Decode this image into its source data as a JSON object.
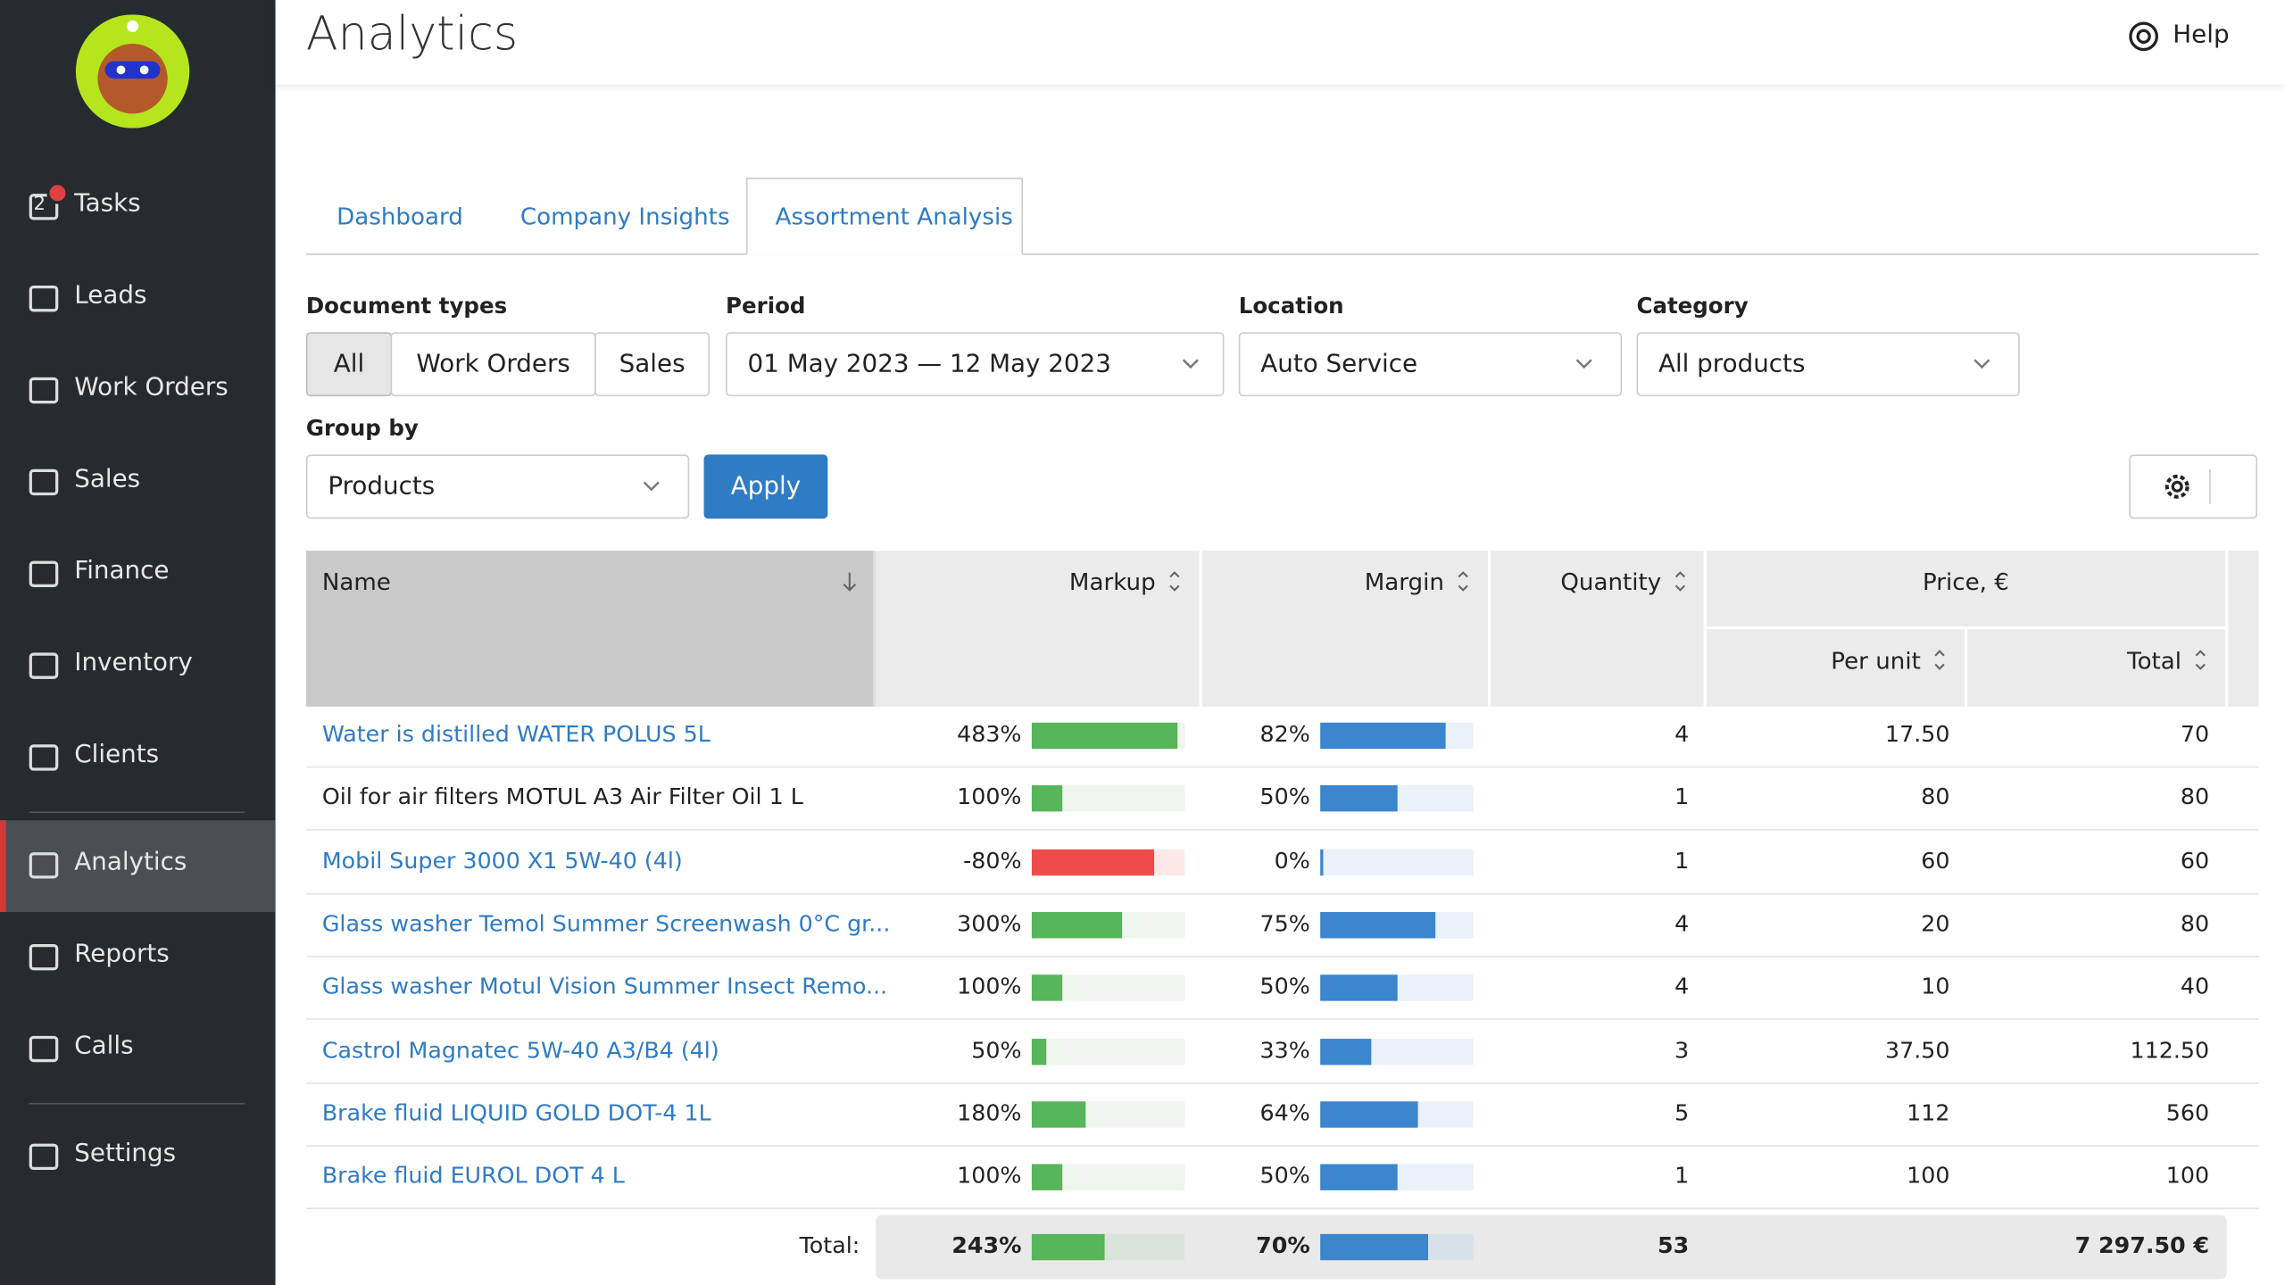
{
  "sidebar": {
    "items": [
      {
        "label": "Tasks",
        "badge": "2"
      },
      {
        "label": "Leads"
      },
      {
        "label": "Work Orders"
      },
      {
        "label": "Sales"
      },
      {
        "label": "Finance"
      },
      {
        "label": "Inventory"
      },
      {
        "label": "Clients"
      },
      {
        "label": "Analytics"
      },
      {
        "label": "Reports"
      },
      {
        "label": "Calls"
      },
      {
        "label": "Settings"
      }
    ]
  },
  "header": {
    "title": "Analytics",
    "help": "Help"
  },
  "tabs": [
    "Dashboard",
    "Company Insights",
    "Assortment Analysis"
  ],
  "filters": {
    "document_types": {
      "label": "Document types",
      "options": [
        "All",
        "Work Orders",
        "Sales"
      ]
    },
    "period": {
      "label": "Period",
      "value": "01 May 2023 — 12 May 2023"
    },
    "location": {
      "label": "Location",
      "value": "Auto Service"
    },
    "category": {
      "label": "Category",
      "value": "All products"
    },
    "group_by": {
      "label": "Group by",
      "value": "Products"
    },
    "apply": "Apply"
  },
  "table": {
    "columns": {
      "name": "Name",
      "markup": "Markup",
      "margin": "Margin",
      "quantity": "Quantity",
      "price": "Price, €",
      "per_unit": "Per unit",
      "total": "Total"
    },
    "rows": [
      {
        "name": "Water is distilled WATER POLUS 5L",
        "name_color": "#2f7bc4",
        "markup": {
          "value": 483,
          "label": "483%"
        },
        "margin": {
          "value": 82,
          "label": "82%"
        },
        "quantity": "4",
        "per_unit": "17.50",
        "total": "70"
      },
      {
        "name": "Oil for air filters MOTUL A3 Air Filter Oil 1 L",
        "name_color": "#222222",
        "markup": {
          "value": 100,
          "label": "100%"
        },
        "margin": {
          "value": 50,
          "label": "50%"
        },
        "quantity": "1",
        "per_unit": "80",
        "total": "80"
      },
      {
        "name": "Mobil Super 3000 X1 5W-40 (4l)",
        "name_color": "#2f7bc4",
        "markup": {
          "value": -80,
          "label": "-80%"
        },
        "margin": {
          "value": 0,
          "label": "0%"
        },
        "quantity": "1",
        "per_unit": "60",
        "total": "60"
      },
      {
        "name": "Glass washer Temol Summer Screenwash 0°C gr...",
        "name_color": "#2f7bc4",
        "markup": {
          "value": 300,
          "label": "300%"
        },
        "margin": {
          "value": 75,
          "label": "75%"
        },
        "quantity": "4",
        "per_unit": "20",
        "total": "80"
      },
      {
        "name": "Glass washer Motul Vision Summer Insect Remo...",
        "name_color": "#2f7bc4",
        "markup": {
          "value": 100,
          "label": "100%"
        },
        "margin": {
          "value": 50,
          "label": "50%"
        },
        "quantity": "4",
        "per_unit": "10",
        "total": "40"
      },
      {
        "name": "Castrol Magnatec 5W-40 A3/B4 (4l)",
        "name_color": "#2f7bc4",
        "markup": {
          "value": 50,
          "label": "50%"
        },
        "margin": {
          "value": 33,
          "label": "33%"
        },
        "quantity": "3",
        "per_unit": "37.50",
        "total": "112.50"
      },
      {
        "name": "Brake fluid LIQUID GOLD DOT-4 1L",
        "name_color": "#2f7bc4",
        "markup": {
          "value": 180,
          "label": "180%"
        },
        "margin": {
          "value": 64,
          "label": "64%"
        },
        "quantity": "5",
        "per_unit": "112",
        "total": "560"
      },
      {
        "name": "Brake fluid EUROL DOT 4 L",
        "name_color": "#2f7bc4",
        "markup": {
          "value": 100,
          "label": "100%"
        },
        "margin": {
          "value": 50,
          "label": "50%"
        },
        "quantity": "1",
        "per_unit": "100",
        "total": "100"
      }
    ],
    "totals": {
      "label": "Total:",
      "markup": {
        "value": 243,
        "label": "243%"
      },
      "margin": {
        "value": 70,
        "label": "70%"
      },
      "quantity": "53",
      "total": "7 297.50 €"
    }
  }
}
